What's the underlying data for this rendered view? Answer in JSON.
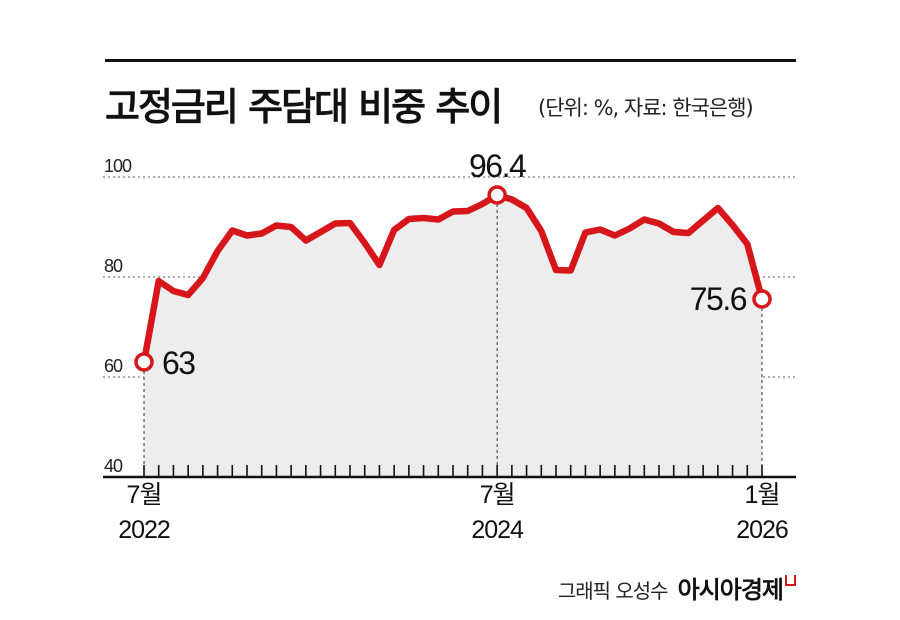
{
  "title": "고정금리 주담대 비중 추이",
  "subtitle": "(단위: %, 자료: 한국은행)",
  "credit": {
    "author": "그래픽 오성수",
    "brand": "아시아경제"
  },
  "colors": {
    "line": "#d7161b",
    "area": "#ededed",
    "grid": "#777777",
    "axis": "#111111"
  },
  "chart_data": {
    "type": "area",
    "title": "고정금리 주담대 비중 추이",
    "unit": "%",
    "source": "한국은행",
    "ylim": [
      40,
      100
    ],
    "yticks": [
      40,
      60,
      80,
      100
    ],
    "grid": "dotted horizontal",
    "x_labels": [
      {
        "index": 0,
        "month": "7월",
        "year": "2022"
      },
      {
        "index": 24,
        "month": "7월",
        "year": "2024"
      },
      {
        "index": 42,
        "month": "1월",
        "year": "2026"
      }
    ],
    "x_start": "2022-07",
    "x_end": "2026-01",
    "series": [
      {
        "values": [
          63,
          79.2,
          77.2,
          76.4,
          79.8,
          85.2,
          89.3,
          88.3,
          88.7,
          90.3,
          90.0,
          87.3,
          89.0,
          90.7,
          90.8,
          86.8,
          82.4,
          89.4,
          91.6,
          91.8,
          91.5,
          93.1,
          93.2,
          94.6,
          96.4,
          95.5,
          93.8,
          89.2,
          81.4,
          81.3,
          88.9,
          89.5,
          88.3,
          89.7,
          91.5,
          90.7,
          89.0,
          88.8,
          91.3,
          93.8,
          90.4,
          86.6,
          75.6
        ]
      }
    ],
    "annotations": [
      {
        "index": 0,
        "label": "63"
      },
      {
        "index": 24,
        "label": "96.4"
      },
      {
        "index": 42,
        "label": "75.6"
      }
    ]
  }
}
